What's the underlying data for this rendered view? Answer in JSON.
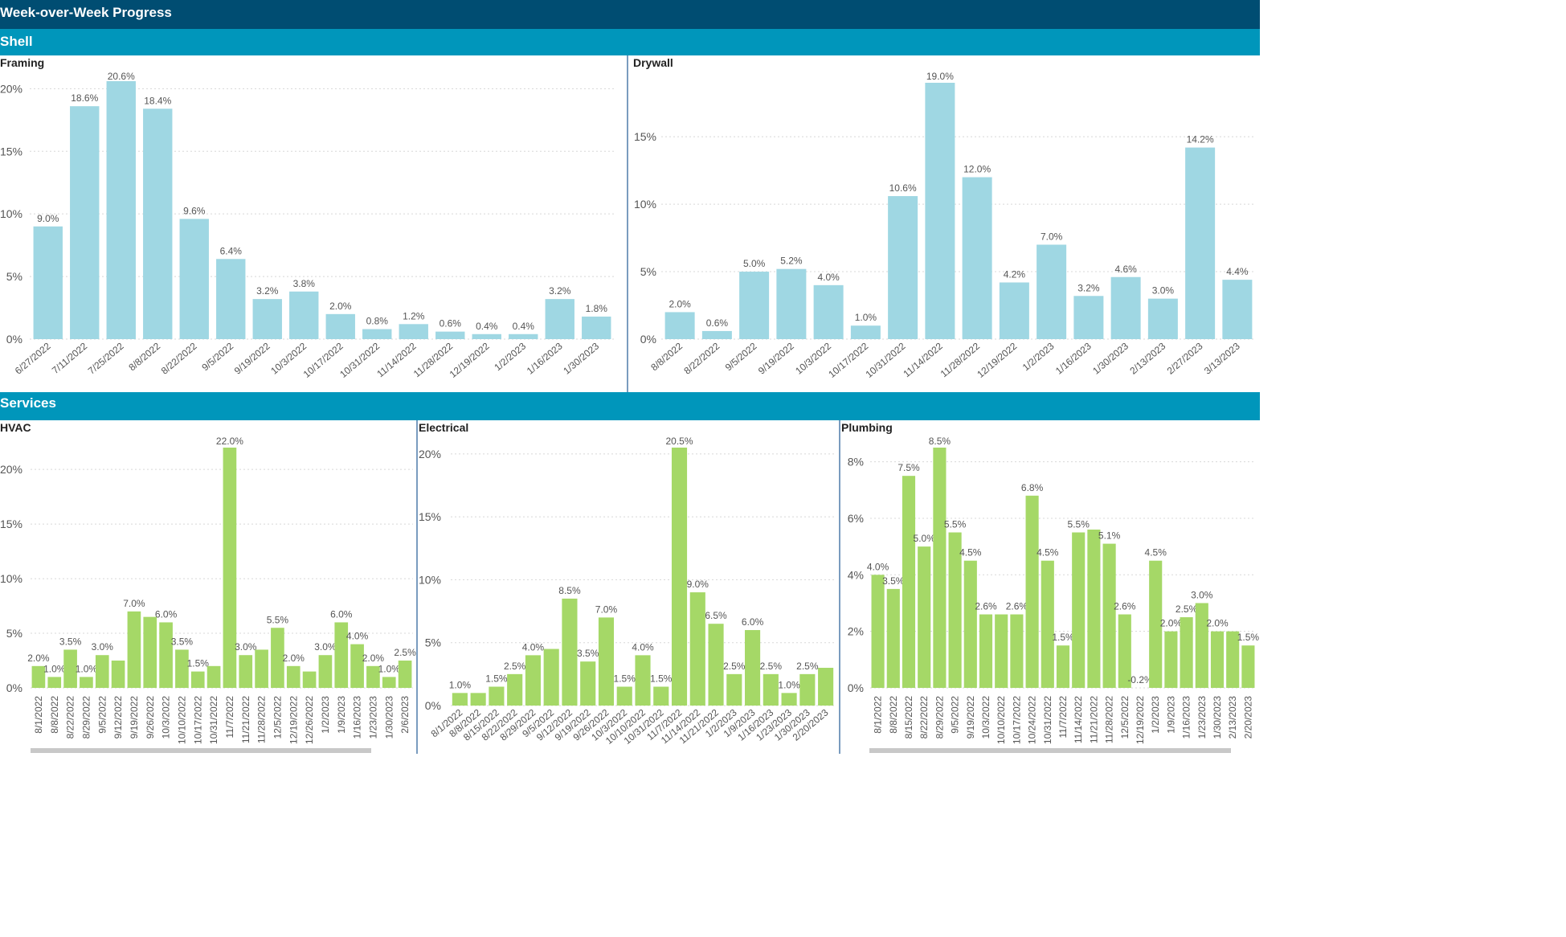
{
  "header": {
    "title": "Week-over-Week Progress"
  },
  "sections": {
    "shell": "Shell",
    "services": "Services"
  },
  "colors": {
    "top_banner": "#004d72",
    "section_banner": "#0096bb",
    "shell_bar": "#9fd7e3",
    "services_bar": "#a5d867"
  },
  "chart_data": [
    {
      "id": "framing",
      "type": "bar",
      "title": "Framing",
      "ylim": [
        0,
        20.6
      ],
      "yticks": [
        "0%",
        "5%",
        "10%",
        "15%",
        "20%"
      ],
      "categories": [
        "6/27/2022",
        "7/11/2022",
        "7/25/2022",
        "8/8/2022",
        "8/22/2022",
        "9/5/2022",
        "9/19/2022",
        "10/3/2022",
        "10/17/2022",
        "10/31/2022",
        "11/14/2022",
        "11/28/2022",
        "12/19/2022",
        "1/2/2023",
        "1/16/2023",
        "1/30/2023"
      ],
      "values": [
        9.0,
        18.6,
        20.6,
        18.4,
        9.6,
        6.4,
        3.2,
        3.8,
        2.0,
        0.8,
        1.2,
        0.6,
        0.4,
        0.4,
        3.2,
        1.8
      ],
      "labels": [
        "9.0%",
        "18.6%",
        "20.6%",
        "18.4%",
        "9.6%",
        "6.4%",
        "3.2%",
        "3.8%",
        "2.0%",
        "0.8%",
        "1.2%",
        "0.6%",
        "0.4%",
        "0.4%",
        "3.2%",
        "1.8%"
      ]
    },
    {
      "id": "drywall",
      "type": "bar",
      "title": "Drywall",
      "ylim": [
        0,
        19.0
      ],
      "yticks": [
        "0%",
        "5%",
        "10%",
        "15%"
      ],
      "categories": [
        "8/8/2022",
        "8/22/2022",
        "9/5/2022",
        "9/19/2022",
        "10/3/2022",
        "10/17/2022",
        "10/31/2022",
        "11/14/2022",
        "11/28/2022",
        "12/19/2022",
        "1/2/2023",
        "1/16/2023",
        "1/30/2023",
        "2/13/2023",
        "2/27/2023",
        "3/13/2023"
      ],
      "values": [
        2.0,
        0.6,
        5.0,
        5.2,
        4.0,
        1.0,
        10.6,
        19.0,
        12.0,
        4.2,
        7.0,
        3.2,
        4.6,
        3.0,
        14.2,
        4.4
      ],
      "labels": [
        "2.0%",
        "0.6%",
        "5.0%",
        "5.2%",
        "4.0%",
        "1.0%",
        "10.6%",
        "19.0%",
        "12.0%",
        "4.2%",
        "7.0%",
        "3.2%",
        "4.6%",
        "3.0%",
        "14.2%",
        "4.4%"
      ]
    },
    {
      "id": "hvac",
      "type": "bar",
      "title": "HVAC",
      "ylim": [
        0,
        22.0
      ],
      "yticks": [
        "0%",
        "5%",
        "10%",
        "15%",
        "20%"
      ],
      "categories": [
        "8/1/2022",
        "8/8/2022",
        "8/22/2022",
        "8/29/2022",
        "9/5/2022",
        "9/12/2022",
        "9/19/2022",
        "9/26/2022",
        "10/3/2022",
        "10/10/2022",
        "10/17/2022",
        "10/31/2022",
        "11/7/2022",
        "11/21/2022",
        "11/28/2022",
        "12/5/2022",
        "12/19/2022",
        "12/26/2022",
        "1/2/2023",
        "1/9/2023",
        "1/16/2023",
        "1/23/2023",
        "1/30/2023",
        "2/6/2023"
      ],
      "values": [
        2.0,
        1.0,
        3.5,
        1.0,
        3.0,
        2.5,
        7.0,
        6.5,
        6.0,
        3.5,
        1.5,
        2.0,
        22.0,
        3.0,
        3.5,
        5.5,
        2.0,
        1.5,
        3.0,
        6.0,
        4.0,
        2.0,
        1.0,
        2.5
      ],
      "labels": [
        "2.0%",
        "1.0%",
        "3.5%",
        "1.0%",
        "3.0%",
        "",
        "7.0%",
        "",
        "6.0%",
        "3.5%",
        "1.5%",
        "",
        "22.0%",
        "3.0%",
        "",
        "5.5%",
        "2.0%",
        "",
        "3.0%",
        "6.0%",
        "4.0%",
        "2.0%",
        "1.0%",
        "2.5%"
      ]
    },
    {
      "id": "electrical",
      "type": "bar",
      "title": "Electrical",
      "ylim": [
        0,
        20.5
      ],
      "yticks": [
        "0%",
        "5%",
        "10%",
        "15%",
        "20%"
      ],
      "categories": [
        "8/1/2022",
        "8/8/2022",
        "8/15/2022",
        "8/22/2022",
        "8/29/2022",
        "9/5/2022",
        "9/12/2022",
        "9/19/2022",
        "9/26/2022",
        "10/3/2022",
        "10/10/2022",
        "10/31/2022",
        "11/7/2022",
        "11/14/2022",
        "11/21/2022",
        "1/2/2023",
        "1/9/2023",
        "1/16/2023",
        "1/23/2023",
        "1/30/2023",
        "2/20/2023"
      ],
      "values": [
        1.0,
        1.0,
        1.5,
        2.5,
        4.0,
        4.5,
        8.5,
        3.5,
        7.0,
        1.5,
        4.0,
        1.5,
        20.5,
        9.0,
        6.5,
        2.5,
        6.0,
        2.5,
        1.0,
        2.5,
        3.0
      ],
      "labels": [
        "1.0%",
        "",
        "1.5%",
        "2.5%",
        "4.0%",
        "",
        "8.5%",
        "3.5%",
        "7.0%",
        "1.5%",
        "4.0%",
        "1.5%",
        "20.5%",
        "9.0%",
        "6.5%",
        "2.5%",
        "6.0%",
        "2.5%",
        "1.0%",
        "2.5%",
        ""
      ]
    },
    {
      "id": "plumbing",
      "type": "bar",
      "title": "Plumbing",
      "ylim": [
        0,
        8.5
      ],
      "yticks": [
        "0%",
        "2%",
        "4%",
        "6%",
        "8%"
      ],
      "categories": [
        "8/1/2022",
        "8/8/2022",
        "8/15/2022",
        "8/22/2022",
        "8/29/2022",
        "9/5/2022",
        "9/19/2022",
        "10/3/2022",
        "10/10/2022",
        "10/17/2022",
        "10/24/2022",
        "10/31/2022",
        "11/7/2022",
        "11/14/2022",
        "11/21/2022",
        "11/28/2022",
        "12/5/2022",
        "12/19/2022",
        "1/2/2023",
        "1/9/2023",
        "1/16/2023",
        "1/23/2023",
        "1/30/2023",
        "2/13/2023",
        "2/20/2023"
      ],
      "values": [
        4.0,
        3.5,
        7.5,
        5.0,
        8.5,
        5.5,
        4.5,
        2.6,
        2.6,
        2.6,
        6.8,
        4.5,
        1.5,
        5.5,
        5.6,
        5.1,
        2.6,
        -0.2,
        4.5,
        2.0,
        2.5,
        3.0,
        2.0,
        2.0,
        1.5
      ],
      "labels": [
        "4.0%",
        "3.5%",
        "7.5%",
        "5.0%",
        "8.5%",
        "5.5%",
        "4.5%",
        "2.6%",
        "",
        "2.6%",
        "6.8%",
        "4.5%",
        "1.5%",
        "5.5%",
        "",
        "5.1%",
        "2.6%",
        "-0.2%",
        "4.5%",
        "2.0%",
        "2.5%",
        "3.0%",
        "2.0%",
        "",
        "1.5%"
      ]
    }
  ]
}
